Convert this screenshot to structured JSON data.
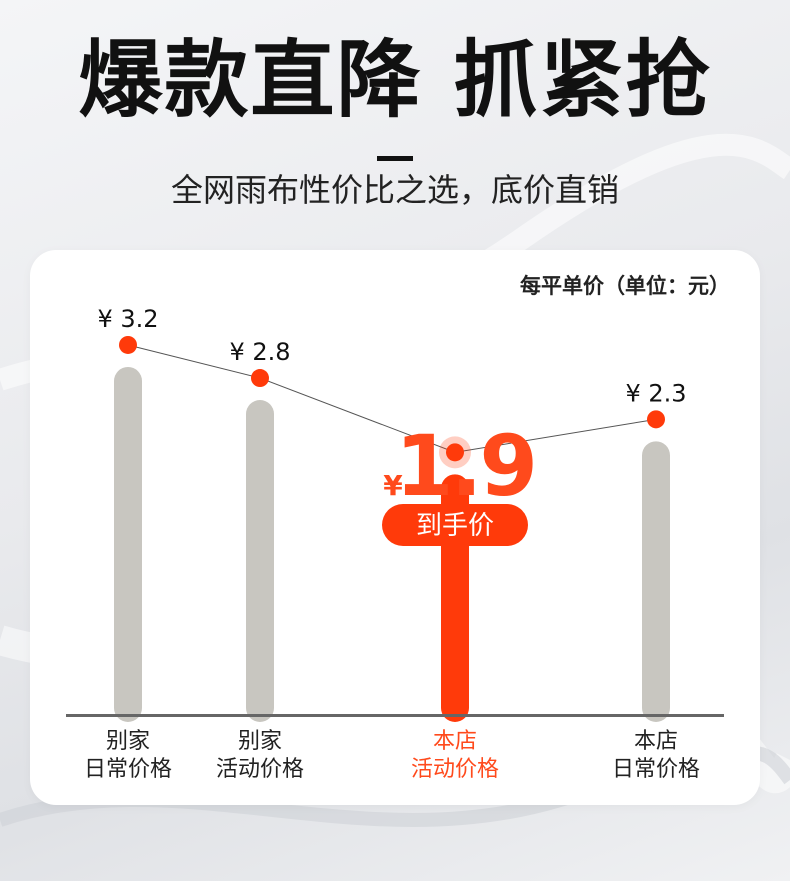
{
  "header": {
    "title": "爆款直降 抓紧抢",
    "subtitle": "全网雨布性价比之选，底价直销"
  },
  "chart_data": {
    "type": "bar",
    "unit_label": "每平单价（单位：元）",
    "categories": [
      {
        "line1": "别家",
        "line2": "日常价格"
      },
      {
        "line1": "别家",
        "line2": "活动价格"
      },
      {
        "line1": "本店",
        "line2": "活动价格"
      },
      {
        "line1": "本店",
        "line2": "日常价格"
      }
    ],
    "values": [
      3.2,
      2.8,
      1.9,
      2.3
    ],
    "value_labels": [
      "¥ 3.2",
      "¥ 2.8",
      "1.9",
      "¥ 2.3"
    ],
    "highlight_index": 2,
    "highlight_currency": "¥",
    "highlight_badge": "到手价",
    "series_line": true,
    "colors": {
      "bar": "#c8c6c0",
      "highlight_bar": "#ff3a0a",
      "dot": "#ff3a0a",
      "line": "#555555",
      "axis": "#666666",
      "highlight_text": "#ff4a1c"
    }
  }
}
